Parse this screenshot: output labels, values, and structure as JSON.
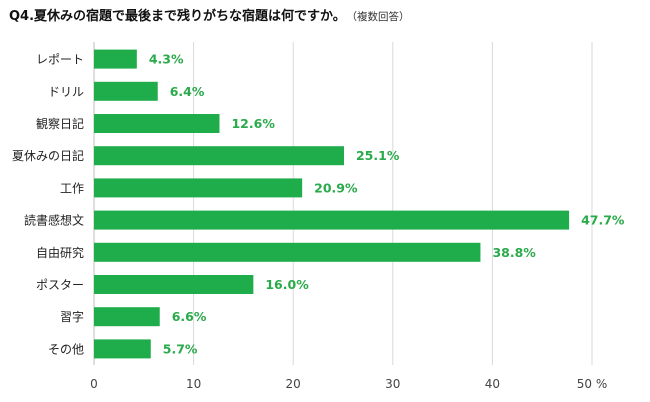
{
  "title": {
    "question": "Q4.夏休みの宿題で最後まで残りがちな宿題は何ですか。",
    "note": "（複数回答）"
  },
  "chart_data": {
    "type": "bar",
    "orientation": "horizontal",
    "categories": [
      "レポート",
      "ドリル",
      "観察日記",
      "夏休みの日記",
      "工作",
      "読書感想文",
      "自由研究",
      "ポスター",
      "習字",
      "その他"
    ],
    "values": [
      4.3,
      6.4,
      12.6,
      25.1,
      20.9,
      47.7,
      38.8,
      16.0,
      6.6,
      5.7
    ],
    "value_labels": [
      "4.3%",
      "6.4%",
      "12.6%",
      "25.1%",
      "20.9%",
      "47.7%",
      "38.8%",
      "16.0%",
      "6.6%",
      "5.7%"
    ],
    "xlim": [
      0,
      50
    ],
    "x_ticks": [
      0,
      10,
      20,
      30,
      40,
      50
    ],
    "x_tick_labels": [
      "0",
      "10",
      "20",
      "30",
      "40",
      "50 %"
    ],
    "bar_color": "#1fad4b",
    "value_label_color": "#2aaa4a",
    "grid": true,
    "legend": "none"
  }
}
